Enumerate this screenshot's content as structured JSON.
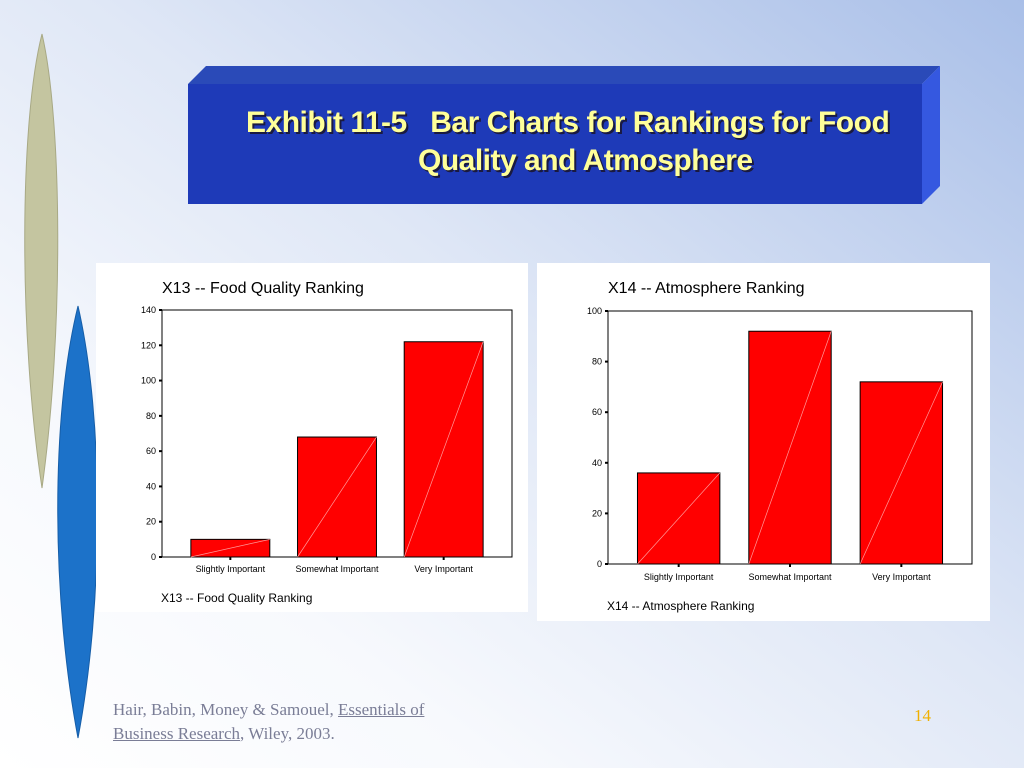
{
  "slide": {
    "title_line1": "Exhibit 11-5   Bar Charts for Rankings for Food",
    "title_line2": "Quality and Atmosphere",
    "footer_authors": "Hair, Babin, Money & Samouel, ",
    "footer_book1": "Essentials of",
    "footer_book2": "Business Research",
    "footer_rest": ", Wiley, 2003.",
    "page_number": "14",
    "colors": {
      "title_bg": "#1e3ab8",
      "title_text": "#ffff99",
      "bar": "#ff0000",
      "footer": "#7a7d96",
      "page_number": "#f0b000"
    }
  },
  "chart_data": [
    {
      "type": "bar",
      "title": "X13 -- Food Quality Ranking",
      "xlabel": "X13 -- Food Quality Ranking",
      "ylabel": "",
      "categories": [
        "Slightly Important",
        "Somewhat Important",
        "Very Important"
      ],
      "values": [
        10,
        68,
        122
      ],
      "ylim": [
        0,
        140
      ],
      "yticks": [
        0,
        20,
        40,
        60,
        80,
        100,
        120,
        140
      ],
      "bar_color": "#ff0000",
      "grid": false
    },
    {
      "type": "bar",
      "title": "X14 -- Atmosphere Ranking",
      "xlabel": "X14 -- Atmosphere Ranking",
      "ylabel": "",
      "categories": [
        "Slightly Important",
        "Somewhat Important",
        "Very Important"
      ],
      "values": [
        36,
        92,
        72
      ],
      "ylim": [
        0,
        100
      ],
      "yticks": [
        0,
        20,
        40,
        60,
        80,
        100
      ],
      "bar_color": "#ff0000",
      "grid": false
    }
  ]
}
